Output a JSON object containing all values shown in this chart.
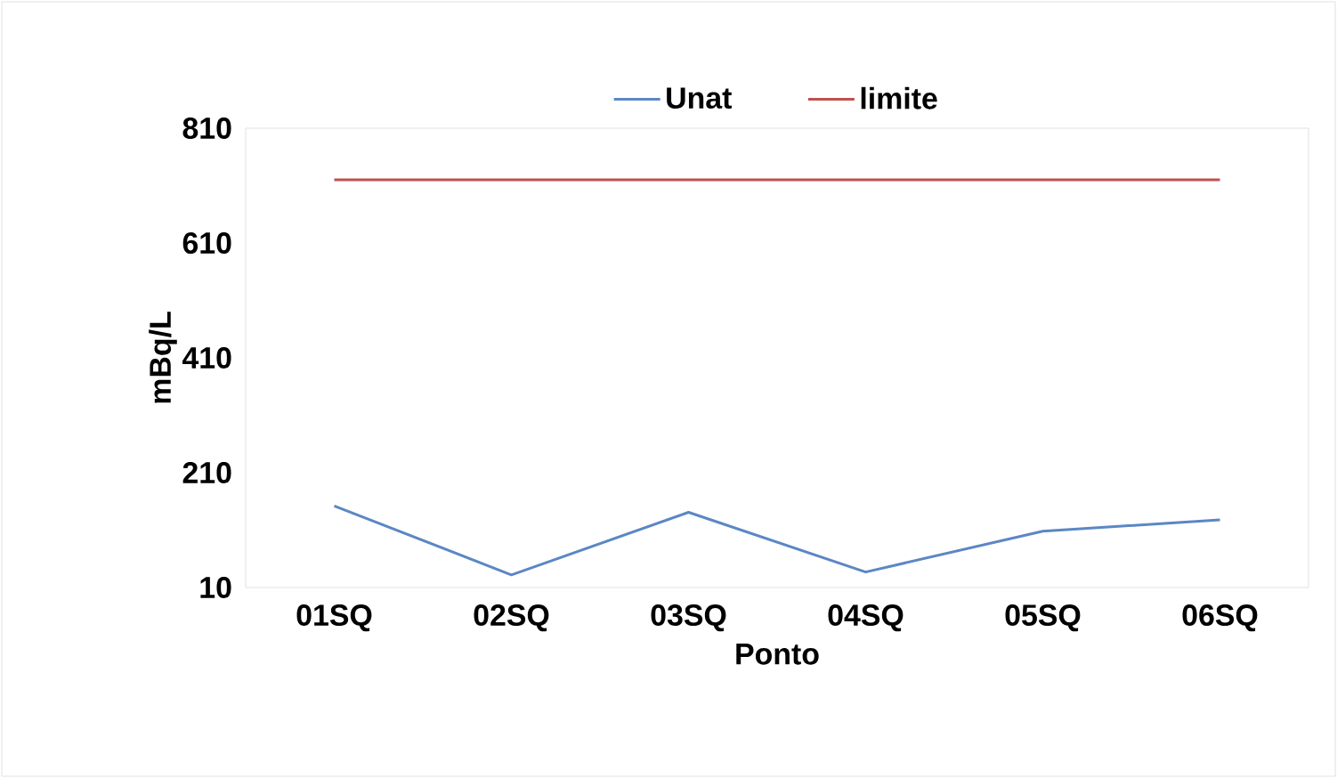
{
  "chart_data": {
    "type": "line",
    "xlabel": "Ponto",
    "ylabel": "mBq/L",
    "categories": [
      "01SQ",
      "02SQ",
      "03SQ",
      "04SQ",
      "05SQ",
      "06SQ"
    ],
    "series": [
      {
        "name": "Unat",
        "color": "#5b87c4",
        "values": [
          152,
          32,
          141,
          37,
          108,
          128
        ]
      },
      {
        "name": "limite",
        "color": "#c0504d",
        "values": [
          720,
          720,
          720,
          720,
          720,
          720
        ]
      }
    ],
    "ylim": [
      10,
      810
    ],
    "yticks": [
      10,
      210,
      410,
      610,
      810
    ],
    "legend": "top",
    "marker": "none",
    "line_style": "solid"
  }
}
